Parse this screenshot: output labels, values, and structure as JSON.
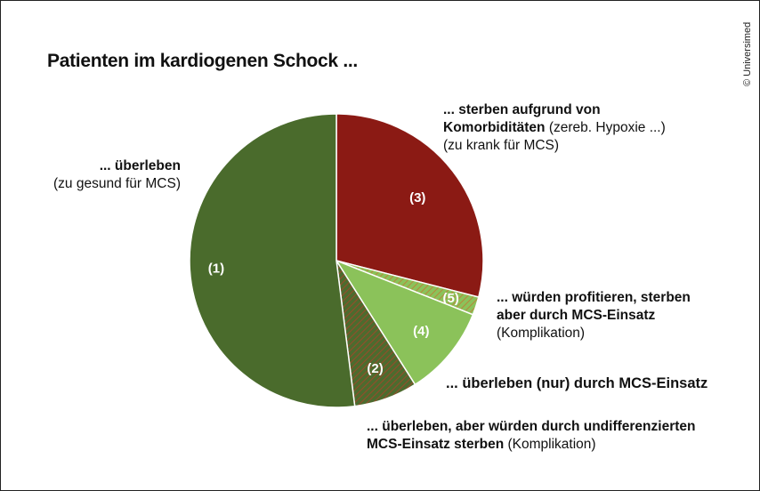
{
  "title": "Patienten im kardiogenen Schock ...",
  "copyright": "© Universimed",
  "chart_data": {
    "type": "pie",
    "title": "Patienten im kardiogenen Schock ...",
    "start_angle_deg": 0,
    "direction": "clockwise",
    "slices": [
      {
        "id": "3",
        "number": "(3)",
        "value": 29,
        "color": "#8b1a14",
        "pattern": "none",
        "label_bold": "... sterben aufgrund von",
        "label_bold2": "Komorbiditäten",
        "label_normal2": " (zereb. Hypoxie ...)",
        "label_normal3": "(zu krank für MCS)"
      },
      {
        "id": "5",
        "number": "(5)",
        "value": 2,
        "color": "#8bc25a",
        "pattern": "hatch",
        "label_bold": "... würden profitieren, sterben",
        "label_bold2": "aber durch MCS-Einsatz",
        "label_normal3": "(Komplikation)"
      },
      {
        "id": "4",
        "number": "(4)",
        "value": 10,
        "color": "#8bc25a",
        "pattern": "none",
        "label_bold": "... überleben (nur) durch MCS-Einsatz"
      },
      {
        "id": "2",
        "number": "(2)",
        "value": 7,
        "color": "#4d6b2e",
        "pattern": "hatch",
        "label_bold": "... überleben, aber würden durch undifferenzierten",
        "label_bold2": "MCS-Einsatz sterben",
        "label_normal2": " (Komplikation)"
      },
      {
        "id": "1",
        "number": "(1)",
        "value": 52,
        "color": "#4a6b2c",
        "pattern": "none",
        "label_bold": "... überleben",
        "label_normal2": "(zu gesund für MCS)"
      }
    ]
  }
}
